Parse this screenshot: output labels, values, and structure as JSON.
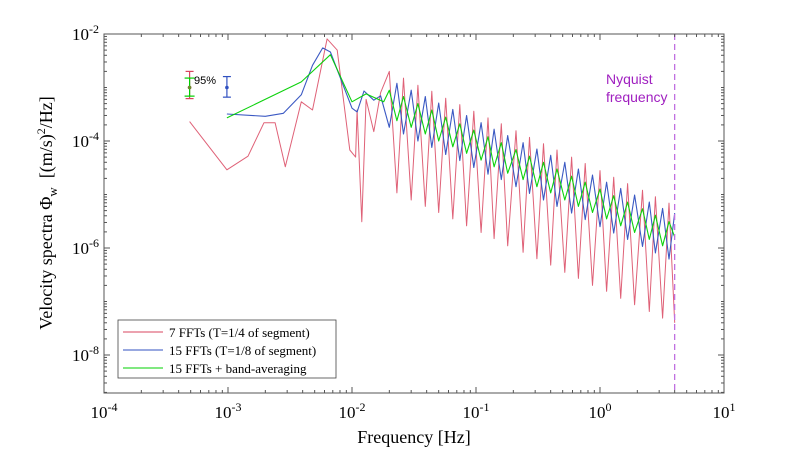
{
  "chart_data": {
    "type": "line",
    "xlabel": "Frequency [Hz]",
    "ylabel": {
      "main": "Velocity spectra Φ",
      "sub": "w",
      "unit_pre": "  [(m/s)",
      "unit_sup": "2",
      "unit_post": "/Hz]"
    },
    "xscale": "log",
    "yscale": "log",
    "xlim": [
      0.0001,
      10
    ],
    "ylim": [
      2e-09,
      0.01
    ],
    "grid": false,
    "legend_position": "bottom-left",
    "x_ticks": [
      {
        "base": "10",
        "exp": "-4",
        "value": 0.0001
      },
      {
        "base": "10",
        "exp": "-3",
        "value": 0.001
      },
      {
        "base": "10",
        "exp": "-2",
        "value": 0.01
      },
      {
        "base": "10",
        "exp": "-1",
        "value": 0.1
      },
      {
        "base": "10",
        "exp": "0",
        "value": 1
      },
      {
        "base": "10",
        "exp": "1",
        "value": 10
      }
    ],
    "y_ticks": [
      {
        "base": "10",
        "exp": "-2",
        "value": 0.01
      },
      {
        "base": "10",
        "exp": "-4",
        "value": 0.0001
      },
      {
        "base": "10",
        "exp": "-6",
        "value": 1e-06
      },
      {
        "base": "10",
        "exp": "-8",
        "value": 1e-08
      }
    ],
    "nyquist": {
      "frequency": 4.0,
      "label_line1": "Nyquist",
      "label_line2": "frequency",
      "color": "#a020c0",
      "line_color": "#c070e0"
    },
    "confidence": {
      "label": "95%",
      "bars": [
        {
          "series": 0,
          "x": 0.00049,
          "low": 0.00062,
          "high": 0.002,
          "center": 0.001
        },
        {
          "series": 2,
          "x": 0.00049,
          "low": 0.00069,
          "high": 0.0015,
          "center": 0.001
        },
        {
          "series": 1,
          "x": 0.00098,
          "low": 0.00066,
          "high": 0.0016,
          "center": 0.001
        }
      ]
    },
    "series": [
      {
        "name": "7 FFTs (T=1/4 of segment)",
        "color": "#d9455f",
        "x": [
          0.00049,
          0.00098,
          0.00145,
          0.00195,
          0.0024,
          0.0029,
          0.0039,
          0.0048,
          0.0063,
          0.0076,
          0.0096,
          0.0107,
          0.011,
          0.012,
          0.013,
          0.015,
          0.017,
          0.02,
          0.023,
          0.026,
          0.03,
          0.034,
          0.039,
          0.044,
          0.05,
          0.057,
          0.065,
          0.074,
          0.084,
          0.096,
          0.11,
          0.125,
          0.14,
          0.16,
          0.18,
          0.21,
          0.24,
          0.27,
          0.31,
          0.35,
          0.4,
          0.45,
          0.52,
          0.59,
          0.67,
          0.76,
          0.87,
          1.0,
          1.13,
          1.29,
          1.47,
          1.67,
          1.9,
          2.2,
          2.5,
          2.8,
          3.2,
          3.6,
          4.0
        ],
        "y": [
          0.00023,
          2.9e-05,
          5.2e-05,
          0.00022,
          0.00022,
          3.3e-05,
          0.00054,
          0.00038,
          0.0081,
          0.005,
          6.8e-05,
          5e-05,
          0.00038,
          3.1e-06,
          0.0006,
          0.00015,
          0.0008,
          0.002,
          1.07e-05,
          0.0015,
          7.9e-06,
          0.0011,
          6e-06,
          0.00085,
          4.6e-06,
          0.00063,
          3.5e-06,
          0.00048,
          2.6e-06,
          0.00036,
          1.95e-06,
          0.00027,
          1.5e-06,
          0.00021,
          1.1e-06,
          0.000155,
          8.3e-07,
          0.000117,
          6.3e-07,
          8.9e-05,
          4.8e-07,
          6.8e-05,
          3.5e-07,
          5e-05,
          2.7e-07,
          3.8e-05,
          2e-07,
          2.8e-05,
          1.55e-07,
          2.1e-05,
          1.15e-07,
          1.6e-05,
          8.7e-08,
          1.2e-05,
          6.5e-08,
          9.1e-06,
          4.9e-08,
          6.9e-06,
          4e-08
        ]
      },
      {
        "name": "15 FFTs (T=1/8 of segment)",
        "color": "#3050c0",
        "x": [
          0.00098,
          0.002,
          0.0028,
          0.0039,
          0.0048,
          0.0058,
          0.0067,
          0.01,
          0.011,
          0.0125,
          0.015,
          0.017,
          0.02,
          0.023,
          0.026,
          0.03,
          0.034,
          0.039,
          0.044,
          0.05,
          0.057,
          0.065,
          0.074,
          0.084,
          0.096,
          0.11,
          0.125,
          0.14,
          0.16,
          0.18,
          0.21,
          0.24,
          0.27,
          0.31,
          0.35,
          0.4,
          0.45,
          0.52,
          0.59,
          0.67,
          0.76,
          0.87,
          1.0,
          1.13,
          1.29,
          1.47,
          1.67,
          1.9,
          2.2,
          2.5,
          2.8,
          3.2,
          3.6,
          4.0
        ],
        "y": [
          0.00032,
          0.00029,
          0.00033,
          0.00073,
          0.0026,
          0.0055,
          0.0046,
          0.00041,
          0.00035,
          0.00086,
          0.00058,
          0.0007,
          0.00018,
          0.0012,
          0.000135,
          0.00089,
          0.0001,
          0.00068,
          7.6e-05,
          0.00051,
          5.6e-05,
          0.00039,
          4.3e-05,
          0.0003,
          3.2e-05,
          0.00022,
          2.4e-05,
          0.000166,
          1.9e-05,
          0.000126,
          1.4e-05,
          9.3e-05,
          1.05e-05,
          7.1e-05,
          7.9e-06,
          5.4e-05,
          6e-06,
          4e-05,
          4.5e-06,
          3e-05,
          3.4e-06,
          2.3e-05,
          2.5e-06,
          1.7e-05,
          1.9e-06,
          1.3e-05,
          1.45e-06,
          9.8e-06,
          1.07e-06,
          7.2e-06,
          8.1e-07,
          5.5e-06,
          6.2e-07,
          4.5e-06
        ]
      },
      {
        "name": "15 FFTs + band-averaging",
        "color": "#00d000",
        "legend_color": "#80e880",
        "x": [
          0.00098,
          0.0039,
          0.0067,
          0.01,
          0.013,
          0.018,
          0.02,
          0.023,
          0.026,
          0.03,
          0.034,
          0.039,
          0.044,
          0.05,
          0.057,
          0.065,
          0.074,
          0.084,
          0.096,
          0.11,
          0.125,
          0.14,
          0.16,
          0.18,
          0.21,
          0.24,
          0.27,
          0.31,
          0.35,
          0.4,
          0.45,
          0.52,
          0.59,
          0.67,
          0.76,
          0.87,
          1.0,
          1.13,
          1.29,
          1.47,
          1.67,
          1.9,
          2.2,
          2.5,
          2.8,
          3.2,
          3.6,
          4.0
        ],
        "y": [
          0.00027,
          0.00127,
          0.0041,
          0.00054,
          0.00076,
          0.00054,
          0.00089,
          0.00024,
          0.00068,
          0.00018,
          0.0005,
          0.000135,
          0.00038,
          0.0001,
          0.00028,
          7.8e-05,
          0.00021,
          5.9e-05,
          0.00016,
          4.4e-05,
          0.00012,
          3.3e-05,
          9.3e-05,
          2.5e-05,
          6.9e-05,
          1.9e-05,
          5.2e-05,
          1.4e-05,
          4e-05,
          1.07e-05,
          3e-05,
          7.9e-06,
          2.2e-05,
          6e-06,
          1.7e-05,
          4.6e-06,
          1.26e-05,
          3.5e-06,
          9.5e-06,
          2.6e-06,
          7.2e-06,
          1.95e-06,
          5.4e-06,
          1.45e-06,
          4.1e-06,
          1.1e-06,
          3.1e-06,
          1.6e-06
        ]
      }
    ]
  }
}
